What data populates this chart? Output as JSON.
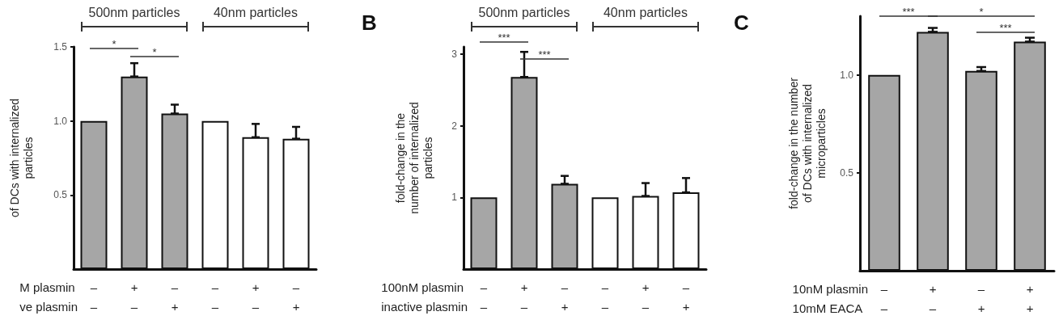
{
  "chart_data": [
    {
      "type": "bar",
      "categories": [
        "–\n–",
        "+\n–",
        "–\n+",
        "–\n–",
        "+\n–",
        "–\n+"
      ],
      "xlabel": "M plasmin\nve plasmin",
      "ylabel": "of DCs with internalized\nparticles",
      "values": [
        1.0,
        1.3,
        1.05,
        1.0,
        0.89,
        0.88
      ],
      "colors": [
        "#a6a6a6",
        "#a6a6a6",
        "#a6a6a6",
        "#ffffff",
        "#ffffff",
        "#ffffff"
      ],
      "errors": [
        null,
        [
          1.3,
          1.39
        ],
        [
          1.05,
          1.11
        ],
        null,
        [
          0.89,
          0.98
        ],
        [
          0.88,
          0.96
        ]
      ],
      "ylim": [
        0,
        1.5
      ],
      "yticks": [
        {
          "value": 0.5,
          "label": "0.5"
        },
        {
          "value": 1.0,
          "label": "1.0"
        },
        {
          "value": 1.5,
          "label": "1.5"
        }
      ],
      "annotations": [
        "500nm particles",
        "40nm particles",
        "*",
        "*"
      ]
    },
    {
      "type": "bar",
      "title": "B",
      "categories": [
        "–\n–",
        "+\n–",
        "–\n+",
        "–\n–",
        "+\n–",
        "–\n+"
      ],
      "xlabel": "100nM plasmin\ninactive plasmin",
      "ylabel": "fold-change in the\nnumber of internalized\nparticles",
      "values": [
        1.0,
        2.68,
        1.19,
        1.0,
        1.02,
        1.07
      ],
      "colors": [
        "#a6a6a6",
        "#a6a6a6",
        "#a6a6a6",
        "#ffffff",
        "#ffffff",
        "#ffffff"
      ],
      "errors": [
        null,
        [
          2.68,
          3.03
        ],
        [
          1.19,
          1.3
        ],
        null,
        [
          1.02,
          1.2
        ],
        [
          1.07,
          1.27
        ]
      ],
      "ylim": [
        0,
        3.1
      ],
      "yticks": [
        1,
        2,
        3
      ],
      "annotations": [
        "500nm particles",
        "40nm particles",
        "***",
        "***"
      ]
    },
    {
      "type": "bar",
      "title": "C",
      "categories": [
        "–\n–",
        "+\n–",
        "–\n+",
        "+\n+"
      ],
      "xlabel": "10nM plasmin\n10mM EACA",
      "ylabel": "fold-change in the number\nof DCs with internalized\nmicroparticles",
      "values": [
        1.0,
        1.22,
        1.02,
        1.17
      ],
      "colors": [
        "#a6a6a6",
        "#a6a6a6",
        "#a6a6a6",
        "#a6a6a6"
      ],
      "errors": [
        null,
        [
          1.22,
          1.24
        ],
        [
          1.02,
          1.04
        ],
        [
          1.17,
          1.19
        ]
      ],
      "ylim": [
        0,
        1.3
      ],
      "yticks": [
        {
          "value": 0.5,
          "label": "0.5"
        },
        {
          "value": 1.0,
          "label": "1.0"
        }
      ],
      "annotations": [
        "***",
        "*",
        "***"
      ]
    }
  ]
}
